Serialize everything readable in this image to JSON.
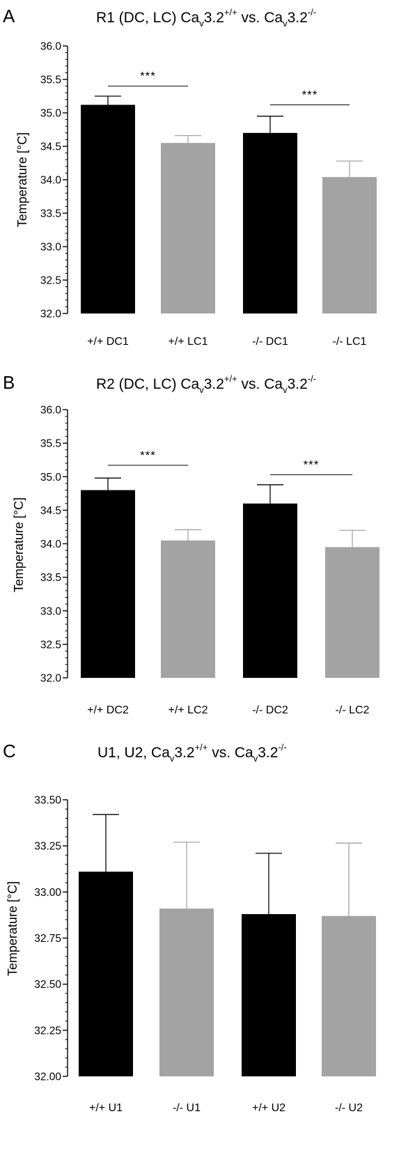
{
  "figure": {
    "panels": [
      {
        "letter": "A",
        "title": {
          "prefix": "R1 (DC, LC) Ca",
          "sub1": "v",
          "base1": "3.2",
          "sup1": "+/+",
          "mid": " vs. Ca",
          "sub2": "v",
          "base2": "3.2",
          "sup2": "-/-"
        }
      },
      {
        "letter": "B",
        "title": {
          "prefix": "R2 (DC, LC) Ca",
          "sub1": "v",
          "base1": "3.2",
          "sup1": "+/+",
          "mid": " vs. Ca",
          "sub2": "v",
          "base2": "3.2",
          "sup2": "-/-"
        }
      },
      {
        "letter": "C",
        "title": {
          "prefix": "U1, U2, Ca",
          "sub1": "v",
          "base1": "3.2",
          "sup1": "+/+",
          "mid": " vs. Ca",
          "sub2": "v",
          "base2": "3.2",
          "sup2": "-/-"
        }
      }
    ]
  },
  "colors": {
    "black_bar": "#000000",
    "gray_bar": "#a3a3a3",
    "axis": "#000000"
  },
  "chart_data": [
    {
      "type": "bar",
      "ylabel": "Temperature  [°C]",
      "ylim": [
        32.0,
        36.0
      ],
      "yticks": [
        "32.0",
        "32.5",
        "33.0",
        "33.5",
        "34.0",
        "34.5",
        "35.0",
        "35.5",
        "36.0"
      ],
      "categories": [
        "+/+ DC1",
        "+/+ LC1",
        "-/- DC1",
        "-/- LC1"
      ],
      "values": [
        35.12,
        34.55,
        34.7,
        34.04
      ],
      "errors": [
        0.13,
        0.11,
        0.25,
        0.24
      ],
      "bar_colors": [
        "black",
        "gray",
        "black",
        "gray"
      ],
      "significance": [
        {
          "from": 0,
          "to": 1,
          "label": "***",
          "y": 35.4
        },
        {
          "from": 2,
          "to": 3,
          "label": "***",
          "y": 35.12
        }
      ]
    },
    {
      "type": "bar",
      "ylabel": "Temperature  [°C]",
      "ylim": [
        32.0,
        36.0
      ],
      "yticks": [
        "32.0",
        "32.5",
        "33.0",
        "33.5",
        "34.0",
        "34.5",
        "35.0",
        "35.5",
        "36.0"
      ],
      "categories": [
        "+/+ DC2",
        "+/+ LC2",
        "-/- DC2",
        "-/- LC2"
      ],
      "values": [
        34.8,
        34.05,
        34.6,
        33.95
      ],
      "errors": [
        0.18,
        0.16,
        0.28,
        0.25
      ],
      "bar_colors": [
        "black",
        "gray",
        "black",
        "gray"
      ],
      "significance": [
        {
          "from": 0,
          "to": 1,
          "label": "***",
          "y": 35.17
        },
        {
          "from": 2,
          "to": 3,
          "label": "***",
          "y": 35.03
        }
      ]
    },
    {
      "type": "bar",
      "ylabel": "Temperature  [°C]",
      "ylim": [
        32.0,
        33.5
      ],
      "yticks": [
        "32.00",
        "32.25",
        "32.50",
        "32.75",
        "33.00",
        "33.25",
        "33.50"
      ],
      "categories": [
        "+/+ U1",
        "-/- U1",
        "+/+ U2",
        "-/- U2"
      ],
      "values": [
        33.11,
        32.91,
        32.88,
        32.87
      ],
      "errors": [
        0.31,
        0.36,
        0.33,
        0.395
      ],
      "bar_colors": [
        "black",
        "gray",
        "black",
        "gray"
      ],
      "significance": []
    }
  ]
}
